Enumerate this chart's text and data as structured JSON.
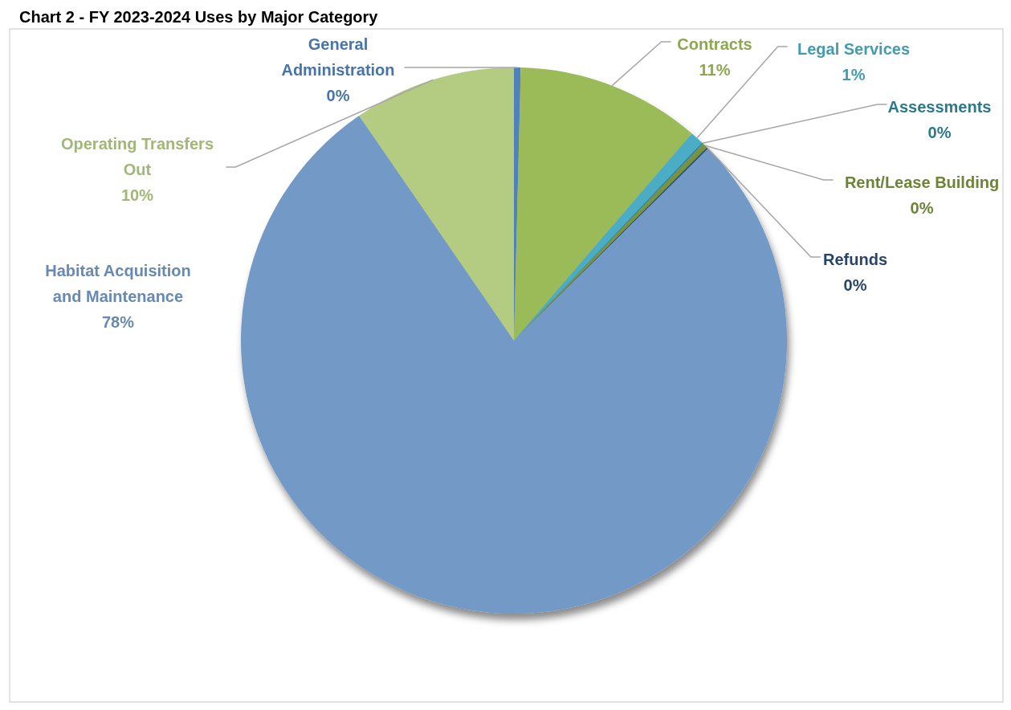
{
  "chart_data": {
    "type": "pie",
    "title": "Chart 2 - FY 2023-2024 Uses by Major Category",
    "categories": [
      "General Administration",
      "Contracts",
      "Legal Services",
      "Assessments",
      "Rent/Lease Building",
      "Refunds",
      "Habitat Acquisition and Maintenance",
      "Operating Transfers Out"
    ],
    "values": [
      0.4,
      10.9,
      0.8,
      0.1,
      0.3,
      0.1,
      77.8,
      9.6
    ],
    "colors": [
      "#4f81bd",
      "#9bbb59",
      "#4bacc6",
      "#31859c",
      "#77933c",
      "#2c4d75",
      "#7399c6",
      "#b3cc82"
    ],
    "value_labels": [
      "0%",
      "11%",
      "1%",
      "0%",
      "0%",
      "0%",
      "78%",
      "10%"
    ]
  }
}
